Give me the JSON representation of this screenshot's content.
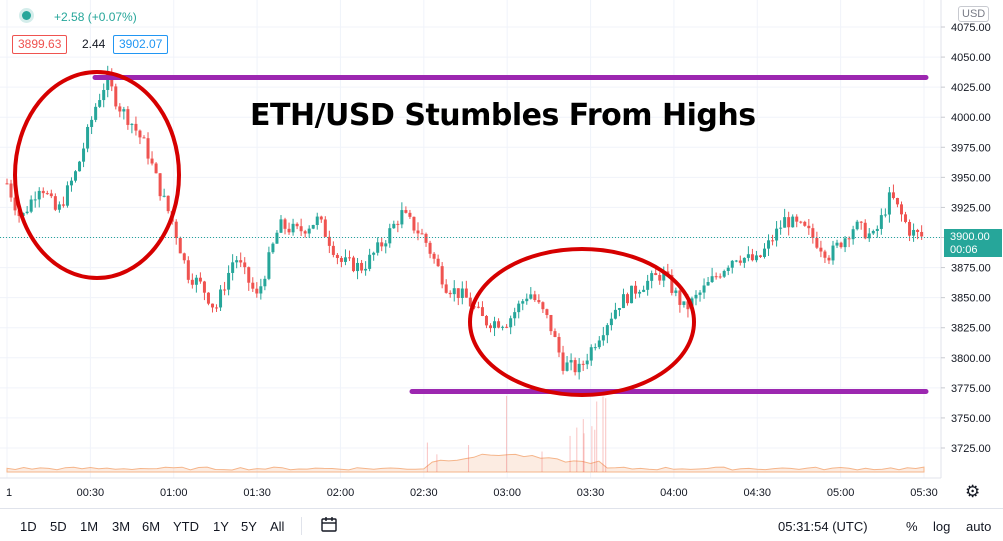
{
  "header": {
    "change": "+2.58 (+0.07%)",
    "bid": "3899.63",
    "spread": "2.44",
    "ask": "3902.07"
  },
  "currency": "USD",
  "last_price": {
    "value": "3900.00",
    "countdown": "00:06"
  },
  "annotation_title": "ETH/USD Stumbles From Highs",
  "y_axis": {
    "ticks": [
      3725,
      3750,
      3775,
      3800,
      3825,
      3850,
      3875,
      3900,
      3925,
      3950,
      3975,
      4000,
      4025,
      4050,
      4075
    ],
    "tick_labels": [
      "3725.00",
      "3750.00",
      "3775.00",
      "3800.00",
      "3825.00",
      "3850.00",
      "3875.00",
      "3900.00",
      "3925.00",
      "3950.00",
      "3975.00",
      "4000.00",
      "4025.00",
      "4050.00",
      "4075.00"
    ]
  },
  "x_axis": {
    "tick_labels": [
      "1",
      "00:30",
      "01:00",
      "01:30",
      "02:00",
      "02:30",
      "03:00",
      "03:30",
      "04:00",
      "04:30",
      "05:00",
      "05:30"
    ]
  },
  "colors": {
    "up": "#26a69a",
    "down": "#ef5350",
    "level": "#9c27b0",
    "ellipse": "#d60000",
    "volume": "#f5b58a"
  },
  "toolbar": {
    "ranges": [
      "1D",
      "5D",
      "1M",
      "3M",
      "6M",
      "YTD",
      "1Y",
      "5Y",
      "All"
    ],
    "compare_icon": "calendar-range-icon",
    "time": "05:31:54 (UTC)",
    "percent": "%",
    "log": "log",
    "auto": "auto"
  },
  "chart_data": {
    "type": "candlestick",
    "symbol": "ETH/USD",
    "x_unit": "minutes after 00:00 UTC",
    "time_range": [
      "00:00",
      "05:30"
    ],
    "ylim": [
      3700,
      4090
    ],
    "resistance_level": 4033,
    "support_level": 3772,
    "last_price": 3900.0,
    "prev_change": 2.58,
    "prev_change_pct": 0.07,
    "close_path_points": [
      {
        "t": 0,
        "p": 3945
      },
      {
        "t": 5,
        "p": 3915
      },
      {
        "t": 12,
        "p": 3945
      },
      {
        "t": 18,
        "p": 3920
      },
      {
        "t": 25,
        "p": 3955
      },
      {
        "t": 32,
        "p": 4010
      },
      {
        "t": 36,
        "p": 4032
      },
      {
        "t": 40,
        "p": 4010
      },
      {
        "t": 45,
        "p": 3995
      },
      {
        "t": 50,
        "p": 3975
      },
      {
        "t": 55,
        "p": 3940
      },
      {
        "t": 60,
        "p": 3910
      },
      {
        "t": 65,
        "p": 3870
      },
      {
        "t": 70,
        "p": 3860
      },
      {
        "t": 75,
        "p": 3840
      },
      {
        "t": 82,
        "p": 3885
      },
      {
        "t": 90,
        "p": 3850
      },
      {
        "t": 98,
        "p": 3910
      },
      {
        "t": 105,
        "p": 3905
      },
      {
        "t": 112,
        "p": 3915
      },
      {
        "t": 120,
        "p": 3880
      },
      {
        "t": 128,
        "p": 3875
      },
      {
        "t": 135,
        "p": 3895
      },
      {
        "t": 142,
        "p": 3920
      },
      {
        "t": 150,
        "p": 3900
      },
      {
        "t": 158,
        "p": 3860
      },
      {
        "t": 165,
        "p": 3850
      },
      {
        "t": 172,
        "p": 3830
      },
      {
        "t": 180,
        "p": 3830
      },
      {
        "t": 188,
        "p": 3855
      },
      {
        "t": 195,
        "p": 3830
      },
      {
        "t": 200,
        "p": 3795
      },
      {
        "t": 206,
        "p": 3790
      },
      {
        "t": 212,
        "p": 3815
      },
      {
        "t": 220,
        "p": 3845
      },
      {
        "t": 228,
        "p": 3860
      },
      {
        "t": 236,
        "p": 3870
      },
      {
        "t": 244,
        "p": 3840
      },
      {
        "t": 252,
        "p": 3860
      },
      {
        "t": 262,
        "p": 3885
      },
      {
        "t": 270,
        "p": 3880
      },
      {
        "t": 280,
        "p": 3915
      },
      {
        "t": 288,
        "p": 3905
      },
      {
        "t": 296,
        "p": 3885
      },
      {
        "t": 305,
        "p": 3910
      },
      {
        "t": 312,
        "p": 3900
      },
      {
        "t": 318,
        "p": 3935
      },
      {
        "t": 325,
        "p": 3905
      },
      {
        "t": 330,
        "p": 3900
      }
    ]
  }
}
